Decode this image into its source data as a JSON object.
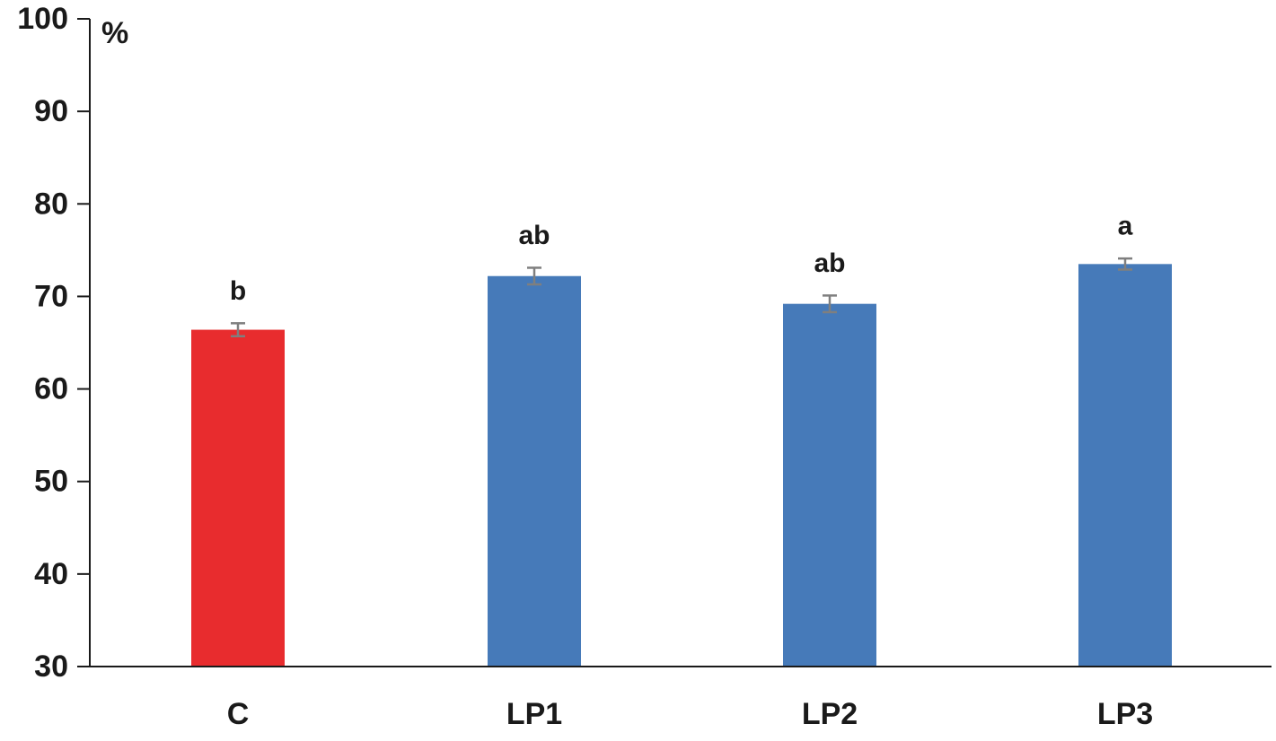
{
  "chart_data": {
    "type": "bar",
    "title": "",
    "xlabel": "",
    "ylabel": "%",
    "ylim": [
      30,
      100
    ],
    "yticks": [
      30,
      40,
      50,
      60,
      70,
      80,
      90,
      100
    ],
    "grid": false,
    "legend": "none",
    "categories": [
      "C",
      "LP1",
      "LP2",
      "LP3"
    ],
    "values": [
      66.4,
      72.2,
      69.2,
      73.5
    ],
    "errors": [
      0.7,
      0.9,
      0.9,
      0.6
    ],
    "significance": [
      "b",
      "ab",
      "ab",
      "a"
    ],
    "colors": [
      "#e82c2e",
      "#467ab9",
      "#467ab9",
      "#467ab9"
    ],
    "error_bar_color": "#7f7f7f",
    "axis_color": "#1a1a1a"
  }
}
